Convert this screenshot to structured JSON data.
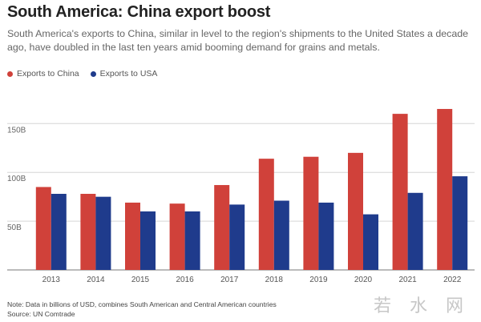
{
  "header": {
    "title": "South America: China export boost",
    "subtitle": "South America's exports to China, similar in level to the region's shipments to the United States a decade ago, have doubled in the last ten years amid booming demand for grains and metals."
  },
  "footer": {
    "note": "Note: Data in billions of USD, combines South American and Central American countries",
    "source": "Source: UN Comtrade"
  },
  "watermark": "若 水 网",
  "chart_data": {
    "type": "bar",
    "categories": [
      "2013",
      "2014",
      "2015",
      "2016",
      "2017",
      "2018",
      "2019",
      "2020",
      "2021",
      "2022"
    ],
    "series": [
      {
        "name": "Exports to China",
        "color": "#d0413a",
        "values": [
          85,
          78,
          69,
          68,
          87,
          114,
          116,
          120,
          160,
          165
        ]
      },
      {
        "name": "Exports to USA",
        "color": "#1f3b8c",
        "values": [
          78,
          75,
          60,
          60,
          67,
          71,
          69,
          57,
          79,
          96
        ]
      }
    ],
    "yticks": [
      50,
      100,
      150
    ],
    "ytick_labels": [
      "50B",
      "100B",
      "150B"
    ],
    "ylim": [
      0,
      175
    ],
    "legend_position": "top-left",
    "grid": true
  }
}
